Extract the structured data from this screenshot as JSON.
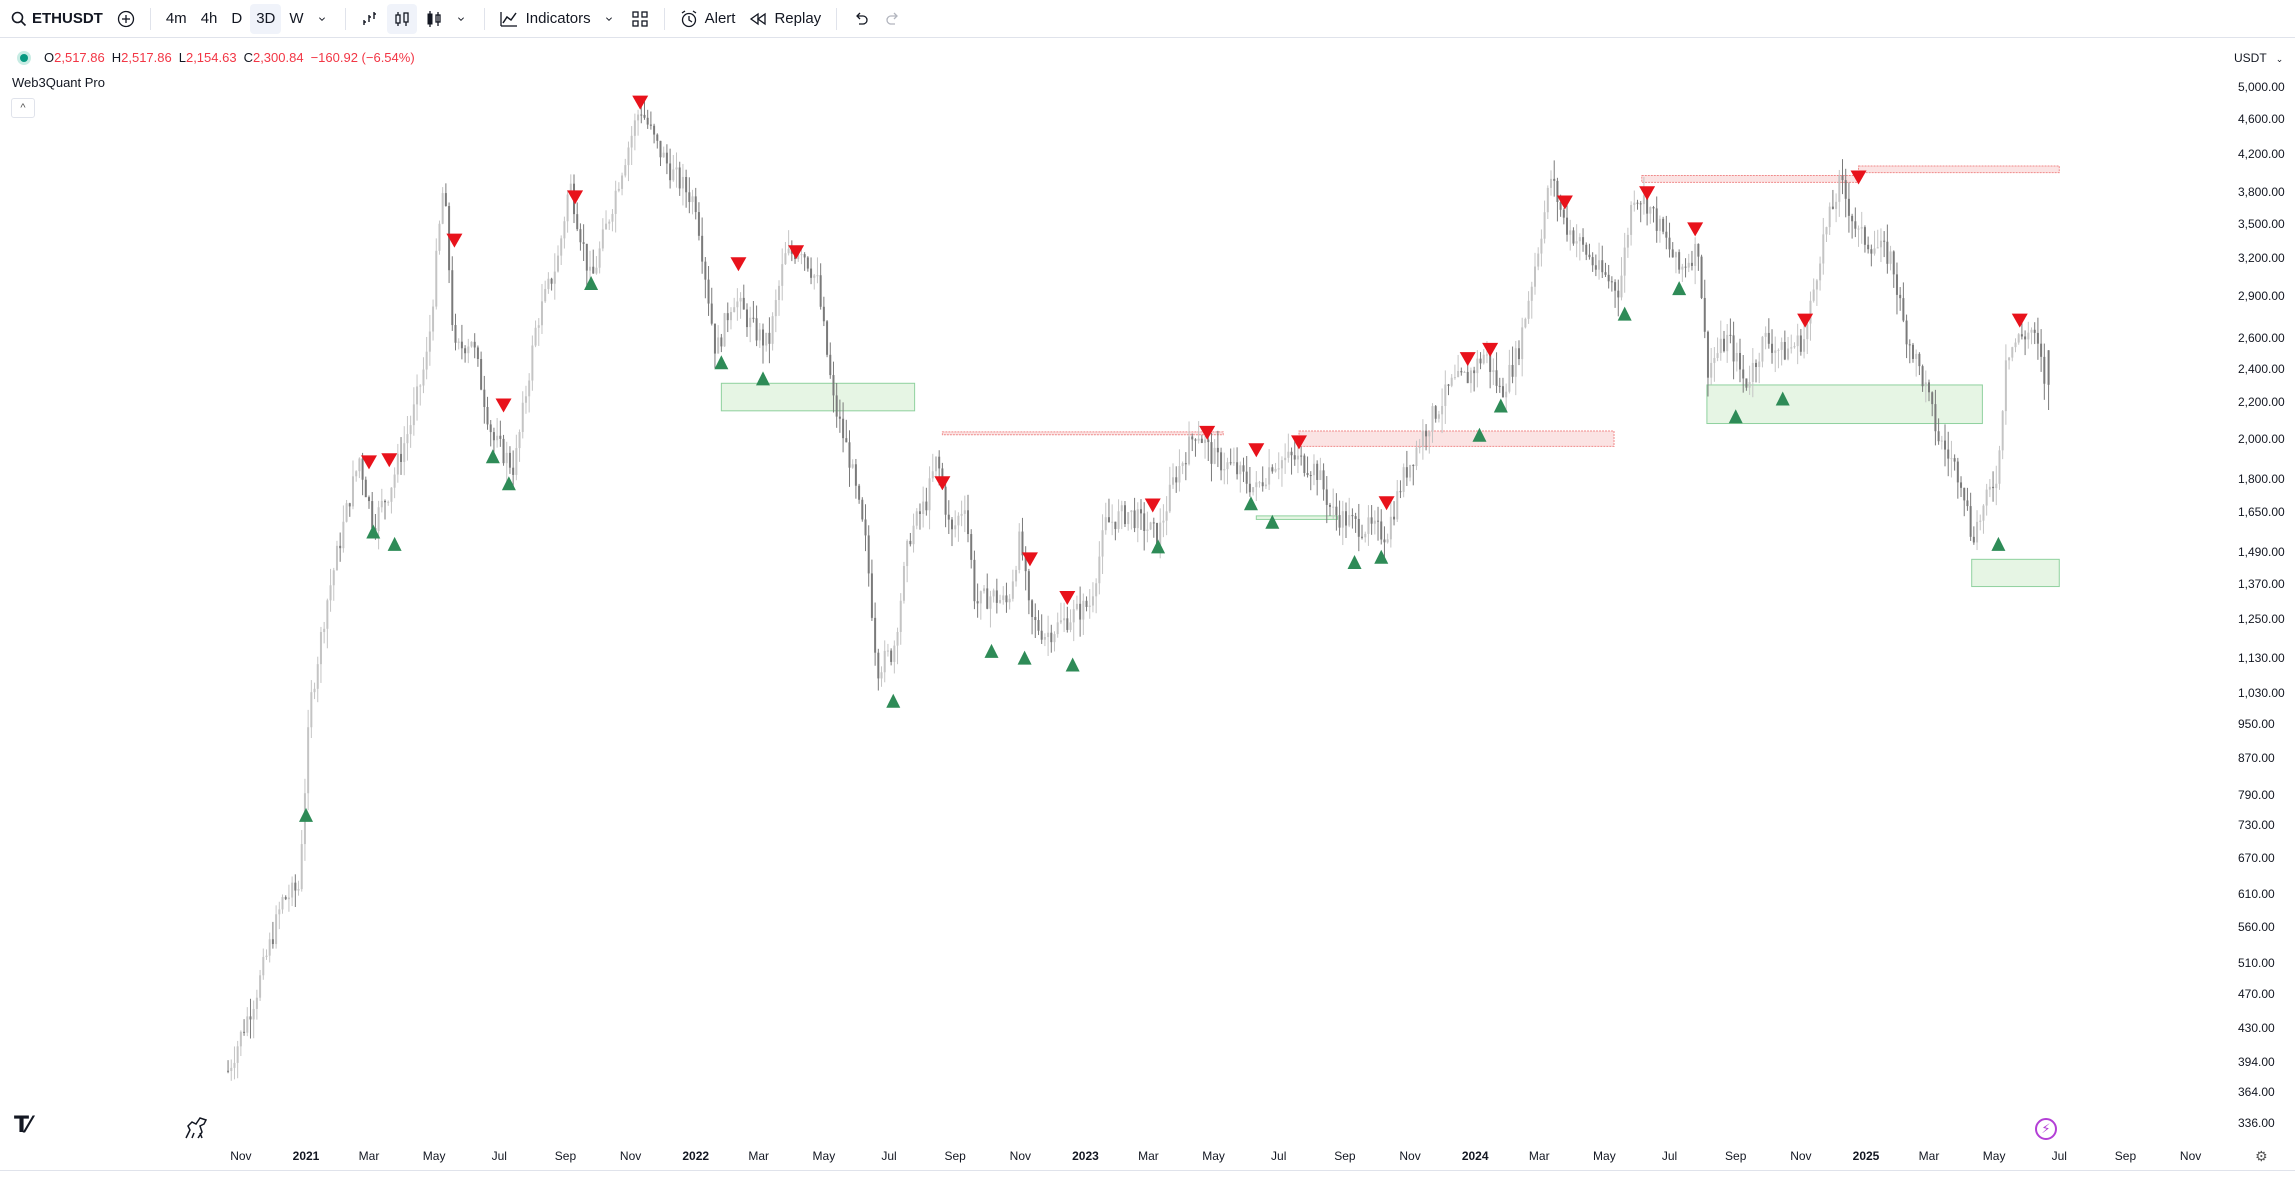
{
  "toolbar": {
    "symbol": "ETHUSDT",
    "intervals": [
      "4m",
      "4h",
      "D",
      "3D",
      "W"
    ],
    "active_interval": "3D",
    "indicators_label": "Indicators",
    "alert_label": "Alert",
    "replay_label": "Replay"
  },
  "legend": {
    "open_label": "O",
    "open": "2,517.86",
    "high_label": "H",
    "high": "2,517.86",
    "low_label": "L",
    "low": "2,154.63",
    "close_label": "C",
    "close": "2,300.84",
    "change": "−160.92 (−6.54%)",
    "indicator_name": "Web3Quant Pro"
  },
  "price_scale": {
    "currency": "USDT",
    "labels": [
      "5,000.00",
      "4,600.00",
      "4,200.00",
      "3,800.00",
      "3,500.00",
      "3,200.00",
      "2,900.00",
      "2,600.00",
      "2,400.00",
      "2,200.00",
      "2,000.00",
      "1,800.00",
      "1,650.00",
      "1,490.00",
      "1,370.00",
      "1,250.00",
      "1,130.00",
      "1,030.00",
      "950.00",
      "870.00",
      "790.00",
      "730.00",
      "670.00",
      "610.00",
      "560.00",
      "510.00",
      "470.00",
      "430.00",
      "394.00",
      "364.00",
      "336.00"
    ]
  },
  "time_scale": {
    "labels": [
      "Nov",
      "2021",
      "Mar",
      "May",
      "Jul",
      "Sep",
      "Nov",
      "2022",
      "Mar",
      "May",
      "Jul",
      "Sep",
      "Nov",
      "2023",
      "Mar",
      "May",
      "Jul",
      "Sep",
      "Nov",
      "2024",
      "Mar",
      "May",
      "Jul",
      "Sep",
      "Nov",
      "2025",
      "Mar",
      "May",
      "Jul",
      "Sep",
      "Nov"
    ]
  },
  "colors": {
    "bearish_signal": "#e8121b",
    "bullish_signal": "#2e8b57",
    "candle": "#9e9e9e",
    "supply_zone": "#fbe3e3",
    "demand_zone": "#e6f5e4"
  },
  "chart_data": {
    "type": "candlestick",
    "symbol": "ETHUSDT",
    "interval": "3D",
    "y_scale": "log",
    "ylim": [
      336,
      5000
    ],
    "close_path": [
      [
        "2020-10-20",
        385
      ],
      [
        "2020-11-15",
        470
      ],
      [
        "2020-12-10",
        600
      ],
      [
        "2020-12-25",
        620
      ],
      [
        "2021-01-05",
        1000
      ],
      [
        "2021-01-20",
        1300
      ],
      [
        "2021-02-10",
        1700
      ],
      [
        "2021-02-20",
        1900
      ],
      [
        "2021-03-05",
        1600
      ],
      [
        "2021-03-20",
        1750
      ],
      [
        "2021-04-10",
        2100
      ],
      [
        "2021-04-25",
        2500
      ],
      [
        "2021-05-10",
        3900
      ],
      [
        "2021-05-20",
        2500
      ],
      [
        "2021-06-05",
        2600
      ],
      [
        "2021-06-25",
        2000
      ],
      [
        "2021-07-15",
        1850
      ],
      [
        "2021-08-05",
        2700
      ],
      [
        "2021-08-25",
        3200
      ],
      [
        "2021-09-05",
        3900
      ],
      [
        "2021-09-25",
        3000
      ],
      [
        "2021-10-10",
        3500
      ],
      [
        "2021-10-25",
        4100
      ],
      [
        "2021-11-10",
        4750
      ],
      [
        "2021-11-25",
        4300
      ],
      [
        "2021-12-10",
        4000
      ],
      [
        "2022-01-01",
        3700
      ],
      [
        "2022-01-20",
        2500
      ],
      [
        "2022-02-05",
        2900
      ],
      [
        "2022-02-25",
        2650
      ],
      [
        "2022-03-10",
        2550
      ],
      [
        "2022-03-25",
        3200
      ],
      [
        "2022-04-10",
        3300
      ],
      [
        "2022-04-25",
        3000
      ],
      [
        "2022-05-10",
        2200
      ],
      [
        "2022-05-25",
        1900
      ],
      [
        "2022-06-10",
        1500
      ],
      [
        "2022-06-20",
        1100
      ],
      [
        "2022-07-05",
        1150
      ],
      [
        "2022-07-20",
        1550
      ],
      [
        "2022-08-05",
        1700
      ],
      [
        "2022-08-15",
        1900
      ],
      [
        "2022-08-28",
        1550
      ],
      [
        "2022-09-10",
        1700
      ],
      [
        "2022-09-20",
        1300
      ],
      [
        "2022-10-05",
        1330
      ],
      [
        "2022-10-20",
        1300
      ],
      [
        "2022-11-01",
        1550
      ],
      [
        "2022-11-10",
        1250
      ],
      [
        "2022-11-25",
        1200
      ],
      [
        "2022-12-15",
        1250
      ],
      [
        "2023-01-05",
        1300
      ],
      [
        "2023-01-20",
        1600
      ],
      [
        "2023-02-10",
        1650
      ],
      [
        "2023-03-10",
        1550
      ],
      [
        "2023-03-25",
        1800
      ],
      [
        "2023-04-15",
        2050
      ],
      [
        "2023-05-01",
        1900
      ],
      [
        "2023-05-20",
        1850
      ],
      [
        "2023-06-10",
        1750
      ],
      [
        "2023-06-25",
        1880
      ],
      [
        "2023-07-15",
        1900
      ],
      [
        "2023-08-05",
        1850
      ],
      [
        "2023-08-20",
        1650
      ],
      [
        "2023-09-10",
        1600
      ],
      [
        "2023-10-10",
        1560
      ],
      [
        "2023-10-25",
        1800
      ],
      [
        "2023-11-15",
        2050
      ],
      [
        "2023-12-10",
        2300
      ],
      [
        "2023-12-25",
        2350
      ],
      [
        "2024-01-10",
        2500
      ],
      [
        "2024-01-25",
        2250
      ],
      [
        "2024-02-10",
        2500
      ],
      [
        "2024-02-25",
        3100
      ],
      [
        "2024-03-12",
        3950
      ],
      [
        "2024-03-25",
        3500
      ],
      [
        "2024-04-10",
        3300
      ],
      [
        "2024-04-25",
        3100
      ],
      [
        "2024-05-15",
        2950
      ],
      [
        "2024-05-28",
        3800
      ],
      [
        "2024-06-10",
        3700
      ],
      [
        "2024-06-25",
        3400
      ],
      [
        "2024-07-10",
        3100
      ],
      [
        "2024-07-28",
        3300
      ],
      [
        "2024-08-05",
        2400
      ],
      [
        "2024-08-25",
        2600
      ],
      [
        "2024-09-10",
        2300
      ],
      [
        "2024-09-28",
        2600
      ],
      [
        "2024-10-15",
        2500
      ],
      [
        "2024-11-05",
        2600
      ],
      [
        "2024-11-20",
        3300
      ],
      [
        "2024-12-08",
        3900
      ],
      [
        "2024-12-25",
        3400
      ],
      [
        "2025-01-10",
        3300
      ],
      [
        "2025-01-25",
        3200
      ],
      [
        "2025-02-05",
        2700
      ],
      [
        "2025-02-25",
        2300
      ],
      [
        "2025-03-10",
        2000
      ],
      [
        "2025-04-01",
        1800
      ],
      [
        "2025-04-10",
        1550
      ],
      [
        "2025-04-20",
        1650
      ],
      [
        "2025-05-05",
        1850
      ],
      [
        "2025-05-12",
        2500
      ],
      [
        "2025-05-25",
        2600
      ],
      [
        "2025-06-05",
        2650
      ],
      [
        "2025-06-12",
        2500
      ],
      [
        "2025-06-18",
        2300
      ]
    ],
    "last_bar": {
      "open": 2517.86,
      "high": 2517.86,
      "low": 2154.63,
      "close": 2300.84
    },
    "bearish_signals": [
      [
        "2021-03-01",
        1880
      ],
      [
        "2021-03-20",
        1890
      ],
      [
        "2021-05-20",
        3350
      ],
      [
        "2021-07-05",
        2180
      ],
      [
        "2021-09-10",
        3750
      ],
      [
        "2021-11-10",
        4800
      ],
      [
        "2022-02-10",
        3150
      ],
      [
        "2022-04-05",
        3250
      ],
      [
        "2022-08-20",
        1780
      ],
      [
        "2022-11-10",
        1460
      ],
      [
        "2022-12-15",
        1320
      ],
      [
        "2023-03-05",
        1680
      ],
      [
        "2023-04-25",
        2030
      ],
      [
        "2023-06-10",
        1940
      ],
      [
        "2023-07-20",
        1980
      ],
      [
        "2023-10-10",
        1690
      ],
      [
        "2023-12-25",
        2460
      ],
      [
        "2024-01-15",
        2520
      ],
      [
        "2024-03-25",
        3700
      ],
      [
        "2024-06-10",
        3790
      ],
      [
        "2024-07-25",
        3450
      ],
      [
        "2024-11-05",
        2720
      ],
      [
        "2024-12-25",
        3950
      ],
      [
        "2025-05-25",
        2720
      ]
    ],
    "bullish_signals": [
      [
        "2021-01-01",
        750
      ],
      [
        "2021-03-05",
        1570
      ],
      [
        "2021-03-25",
        1520
      ],
      [
        "2021-06-25",
        1910
      ],
      [
        "2021-07-10",
        1780
      ],
      [
        "2021-09-25",
        3000
      ],
      [
        "2022-01-25",
        2440
      ],
      [
        "2022-03-05",
        2340
      ],
      [
        "2022-07-05",
        1010
      ],
      [
        "2022-10-05",
        1150
      ],
      [
        "2022-11-05",
        1130
      ],
      [
        "2022-12-20",
        1110
      ],
      [
        "2023-03-10",
        1510
      ],
      [
        "2023-06-05",
        1690
      ],
      [
        "2023-06-25",
        1610
      ],
      [
        "2023-09-10",
        1450
      ],
      [
        "2023-10-05",
        1470
      ],
      [
        "2024-01-05",
        2020
      ],
      [
        "2024-01-25",
        2180
      ],
      [
        "2024-05-20",
        2770
      ],
      [
        "2024-07-10",
        2960
      ],
      [
        "2024-09-01",
        2120
      ],
      [
        "2024-10-15",
        2220
      ],
      [
        "2025-05-05",
        1520
      ]
    ],
    "zones": [
      {
        "kind": "demand",
        "from": "2022-01-25",
        "to": "2022-07-25",
        "low": 2150,
        "high": 2310
      },
      {
        "kind": "supply",
        "from": "2022-08-20",
        "to": "2023-05-10",
        "low": 2020,
        "high": 2035
      },
      {
        "kind": "demand",
        "from": "2023-06-10",
        "to": "2023-08-25",
        "low": 1620,
        "high": 1635
      },
      {
        "kind": "supply",
        "from": "2023-07-20",
        "to": "2024-05-10",
        "low": 1960,
        "high": 2040
      },
      {
        "kind": "supply",
        "from": "2024-06-05",
        "to": "2024-12-25",
        "low": 3900,
        "high": 3970
      },
      {
        "kind": "supply",
        "from": "2024-12-25",
        "to": "2025-07-01",
        "low": 4000,
        "high": 4070
      },
      {
        "kind": "demand",
        "from": "2024-08-05",
        "to": "2025-04-20",
        "low": 2080,
        "high": 2300
      },
      {
        "kind": "demand",
        "from": "2025-04-10",
        "to": "2025-07-01",
        "low": 1360,
        "high": 1460
      }
    ]
  }
}
